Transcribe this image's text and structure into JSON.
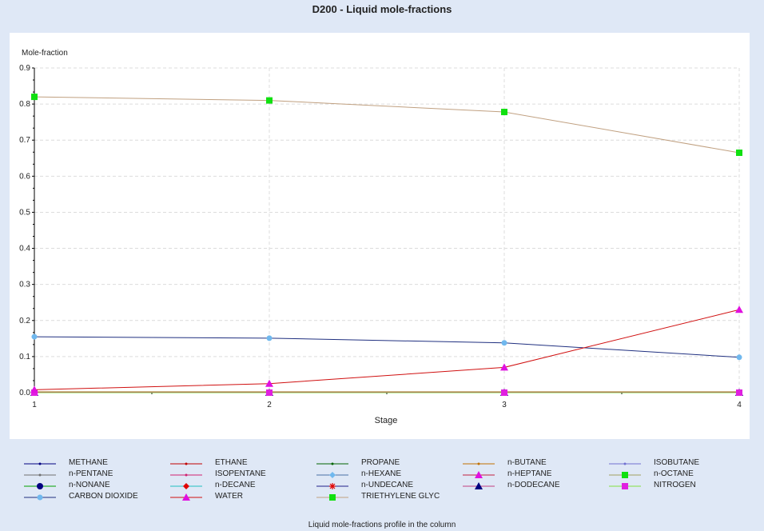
{
  "chart_data": {
    "type": "line",
    "title": "D200 - Liquid mole-fractions",
    "ylabel": "Mole-fraction",
    "xlabel": "Stage",
    "footer": "Liquid mole-fractions profile in the column",
    "x": [
      1,
      2,
      3,
      4
    ],
    "xlim": [
      1,
      4
    ],
    "ylim": [
      0,
      0.9
    ],
    "y_ticks": [
      "0.0",
      "0.1",
      "0.2",
      "0.3",
      "0.4",
      "0.5",
      "0.6",
      "0.7",
      "0.8",
      "0.9"
    ],
    "x_ticks": [
      "1",
      "2",
      "3",
      "4"
    ],
    "grid": true,
    "legend_position": "bottom",
    "series": [
      {
        "name": "METHANE",
        "color": "#000080",
        "marker": "dot",
        "values": [
          0.0,
          0.0,
          0.0,
          0.0
        ]
      },
      {
        "name": "ETHANE",
        "color": "#c00000",
        "marker": "dot",
        "values": [
          0.0,
          0.0,
          0.0,
          0.0
        ]
      },
      {
        "name": "PROPANE",
        "color": "#006400",
        "marker": "dot",
        "values": [
          0.002,
          0.002,
          0.002,
          0.002
        ]
      },
      {
        "name": "n-BUTANE",
        "color": "#c07000",
        "marker": "dot",
        "values": [
          0.002,
          0.002,
          0.002,
          0.002
        ]
      },
      {
        "name": "ISOBUTANE",
        "color": "#7070d0",
        "marker": "dot",
        "values": [
          0.001,
          0.001,
          0.001,
          0.001
        ]
      },
      {
        "name": "n-PENTANE",
        "color": "#707070",
        "marker": "dot",
        "values": [
          0.001,
          0.001,
          0.001,
          0.001
        ]
      },
      {
        "name": "ISOPENTANE",
        "color": "#d02070",
        "marker": "dot",
        "values": [
          0.001,
          0.001,
          0.001,
          0.001
        ]
      },
      {
        "name": "n-HEXANE",
        "color": "#4a6fa5",
        "marker": "diamond",
        "values": [
          0.0,
          0.0,
          0.0,
          0.0
        ]
      },
      {
        "name": "n-HEPTANE",
        "color": "#c02040",
        "marker": "triangle",
        "values": [
          0.0,
          0.0,
          0.0,
          0.0
        ]
      },
      {
        "name": "n-OCTANE",
        "color": "#a0a060",
        "marker": "square",
        "values": [
          0.0,
          0.0,
          0.0,
          0.0
        ]
      },
      {
        "name": "n-NONANE",
        "color": "#00a000",
        "marker": "octagon",
        "values": [
          0.0,
          0.0,
          0.0,
          0.0
        ]
      },
      {
        "name": "n-DECANE",
        "color": "#20c0c0",
        "marker": "diamond-red",
        "values": [
          0.0,
          0.0,
          0.0,
          0.0
        ]
      },
      {
        "name": "n-UNDECANE",
        "color": "#20208a",
        "marker": "star",
        "values": [
          0.0,
          0.0,
          0.0,
          0.0
        ]
      },
      {
        "name": "n-DODECANE",
        "color": "#c04080",
        "marker": "triangle-navy",
        "values": [
          0.0,
          0.0,
          0.0,
          0.0
        ]
      },
      {
        "name": "NITROGEN",
        "color": "#80e040",
        "marker": "square-magenta",
        "values": [
          0.0,
          0.0,
          0.0,
          0.0
        ]
      },
      {
        "name": "CARBON DIOXIDE",
        "color": "#203080",
        "marker": "circle-light",
        "values": [
          0.155,
          0.151,
          0.138,
          0.098
        ]
      },
      {
        "name": "WATER",
        "color": "#d01010",
        "marker": "triangle-magenta",
        "values": [
          0.008,
          0.025,
          0.07,
          0.23
        ]
      },
      {
        "name": "TRIETHYLENE GLYC",
        "color": "#c0a080",
        "marker": "square-green",
        "values": [
          0.82,
          0.81,
          0.778,
          0.665
        ]
      }
    ]
  }
}
